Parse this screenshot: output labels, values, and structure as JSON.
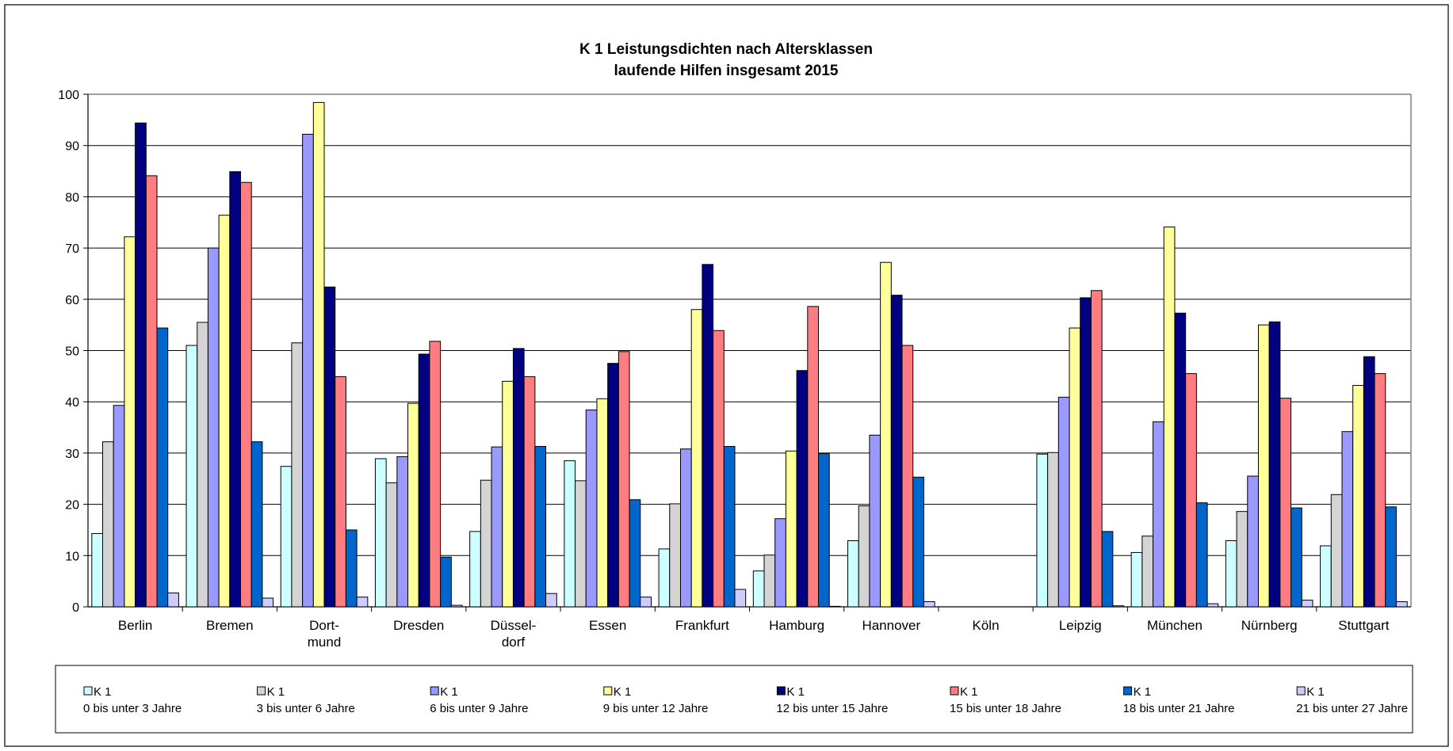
{
  "chart_data": {
    "type": "bar",
    "title": "K 1 Leistungsdichten nach Altersklassen",
    "subtitle": "laufende Hilfen insgesamt 2015",
    "xlabel": "",
    "ylabel": "",
    "ylim": [
      0,
      100
    ],
    "yticks": [
      "0",
      "10",
      "20",
      "30",
      "40",
      "50",
      "60",
      "70",
      "80",
      "90",
      "100"
    ],
    "grid": true,
    "legend_position": "bottom",
    "categories": [
      [
        "Berlin"
      ],
      [
        "Bremen"
      ],
      [
        "Dort-",
        "mund"
      ],
      [
        "Dresden"
      ],
      [
        "Düssel-",
        "dorf"
      ],
      [
        "Essen"
      ],
      [
        "Frankfurt"
      ],
      [
        "Hamburg"
      ],
      [
        "Hannover"
      ],
      [
        "Köln"
      ],
      [
        "Leipzig"
      ],
      [
        "München"
      ],
      [
        "Nürnberg"
      ],
      [
        "Stuttgart"
      ]
    ],
    "series": [
      {
        "name": "K 1",
        "sublabel": "0 bis unter 3 Jahre",
        "color": "#ccffff",
        "values": [
          14.3,
          51.0,
          27.4,
          28.9,
          14.7,
          28.5,
          11.3,
          7.0,
          12.9,
          0,
          29.8,
          10.6,
          12.9,
          11.9
        ]
      },
      {
        "name": "K 1",
        "sublabel": "3 bis unter 6 Jahre",
        "color": "#d4d4d4",
        "values": [
          32.2,
          55.5,
          51.5,
          24.2,
          24.7,
          24.6,
          20.1,
          10.1,
          19.7,
          0,
          30.1,
          13.8,
          18.6,
          21.9
        ]
      },
      {
        "name": "K 1",
        "sublabel": "6 bis unter 9 Jahre",
        "color": "#9999ff",
        "values": [
          39.3,
          70.0,
          92.2,
          29.3,
          31.2,
          38.4,
          30.8,
          17.2,
          33.5,
          0,
          40.9,
          36.1,
          25.5,
          34.2
        ]
      },
      {
        "name": "K 1",
        "sublabel": "9 bis unter 12 Jahre",
        "color": "#ffff99",
        "values": [
          72.2,
          76.4,
          98.4,
          39.7,
          44.0,
          40.6,
          58.0,
          30.4,
          67.2,
          0,
          54.4,
          74.1,
          55.0,
          43.2
        ]
      },
      {
        "name": "K 1",
        "sublabel": "12 bis unter 15 Jahre",
        "color": "#000080",
        "values": [
          94.4,
          84.9,
          62.4,
          49.3,
          50.4,
          47.5,
          66.8,
          46.1,
          60.8,
          0,
          60.3,
          57.3,
          55.6,
          48.8
        ]
      },
      {
        "name": "K 1",
        "sublabel": "15 bis unter 18 Jahre",
        "color": "#ff7c80",
        "values": [
          84.1,
          82.8,
          44.9,
          51.8,
          44.9,
          49.8,
          53.9,
          58.6,
          51.0,
          0,
          61.7,
          45.5,
          40.7,
          45.5
        ]
      },
      {
        "name": "K 1",
        "sublabel": "18 bis unter 21 Jahre",
        "color": "#0066cc",
        "values": [
          54.4,
          32.2,
          15.0,
          9.7,
          31.3,
          20.9,
          31.3,
          29.9,
          25.3,
          0,
          14.7,
          20.3,
          19.3,
          19.5
        ]
      },
      {
        "name": "K 1",
        "sublabel": "21 bis unter 27 Jahre",
        "color": "#ccccff",
        "values": [
          2.7,
          1.7,
          1.9,
          0.3,
          2.6,
          1.9,
          3.4,
          0.1,
          1.0,
          0,
          0.2,
          0.6,
          1.3,
          1.0
        ]
      }
    ]
  }
}
